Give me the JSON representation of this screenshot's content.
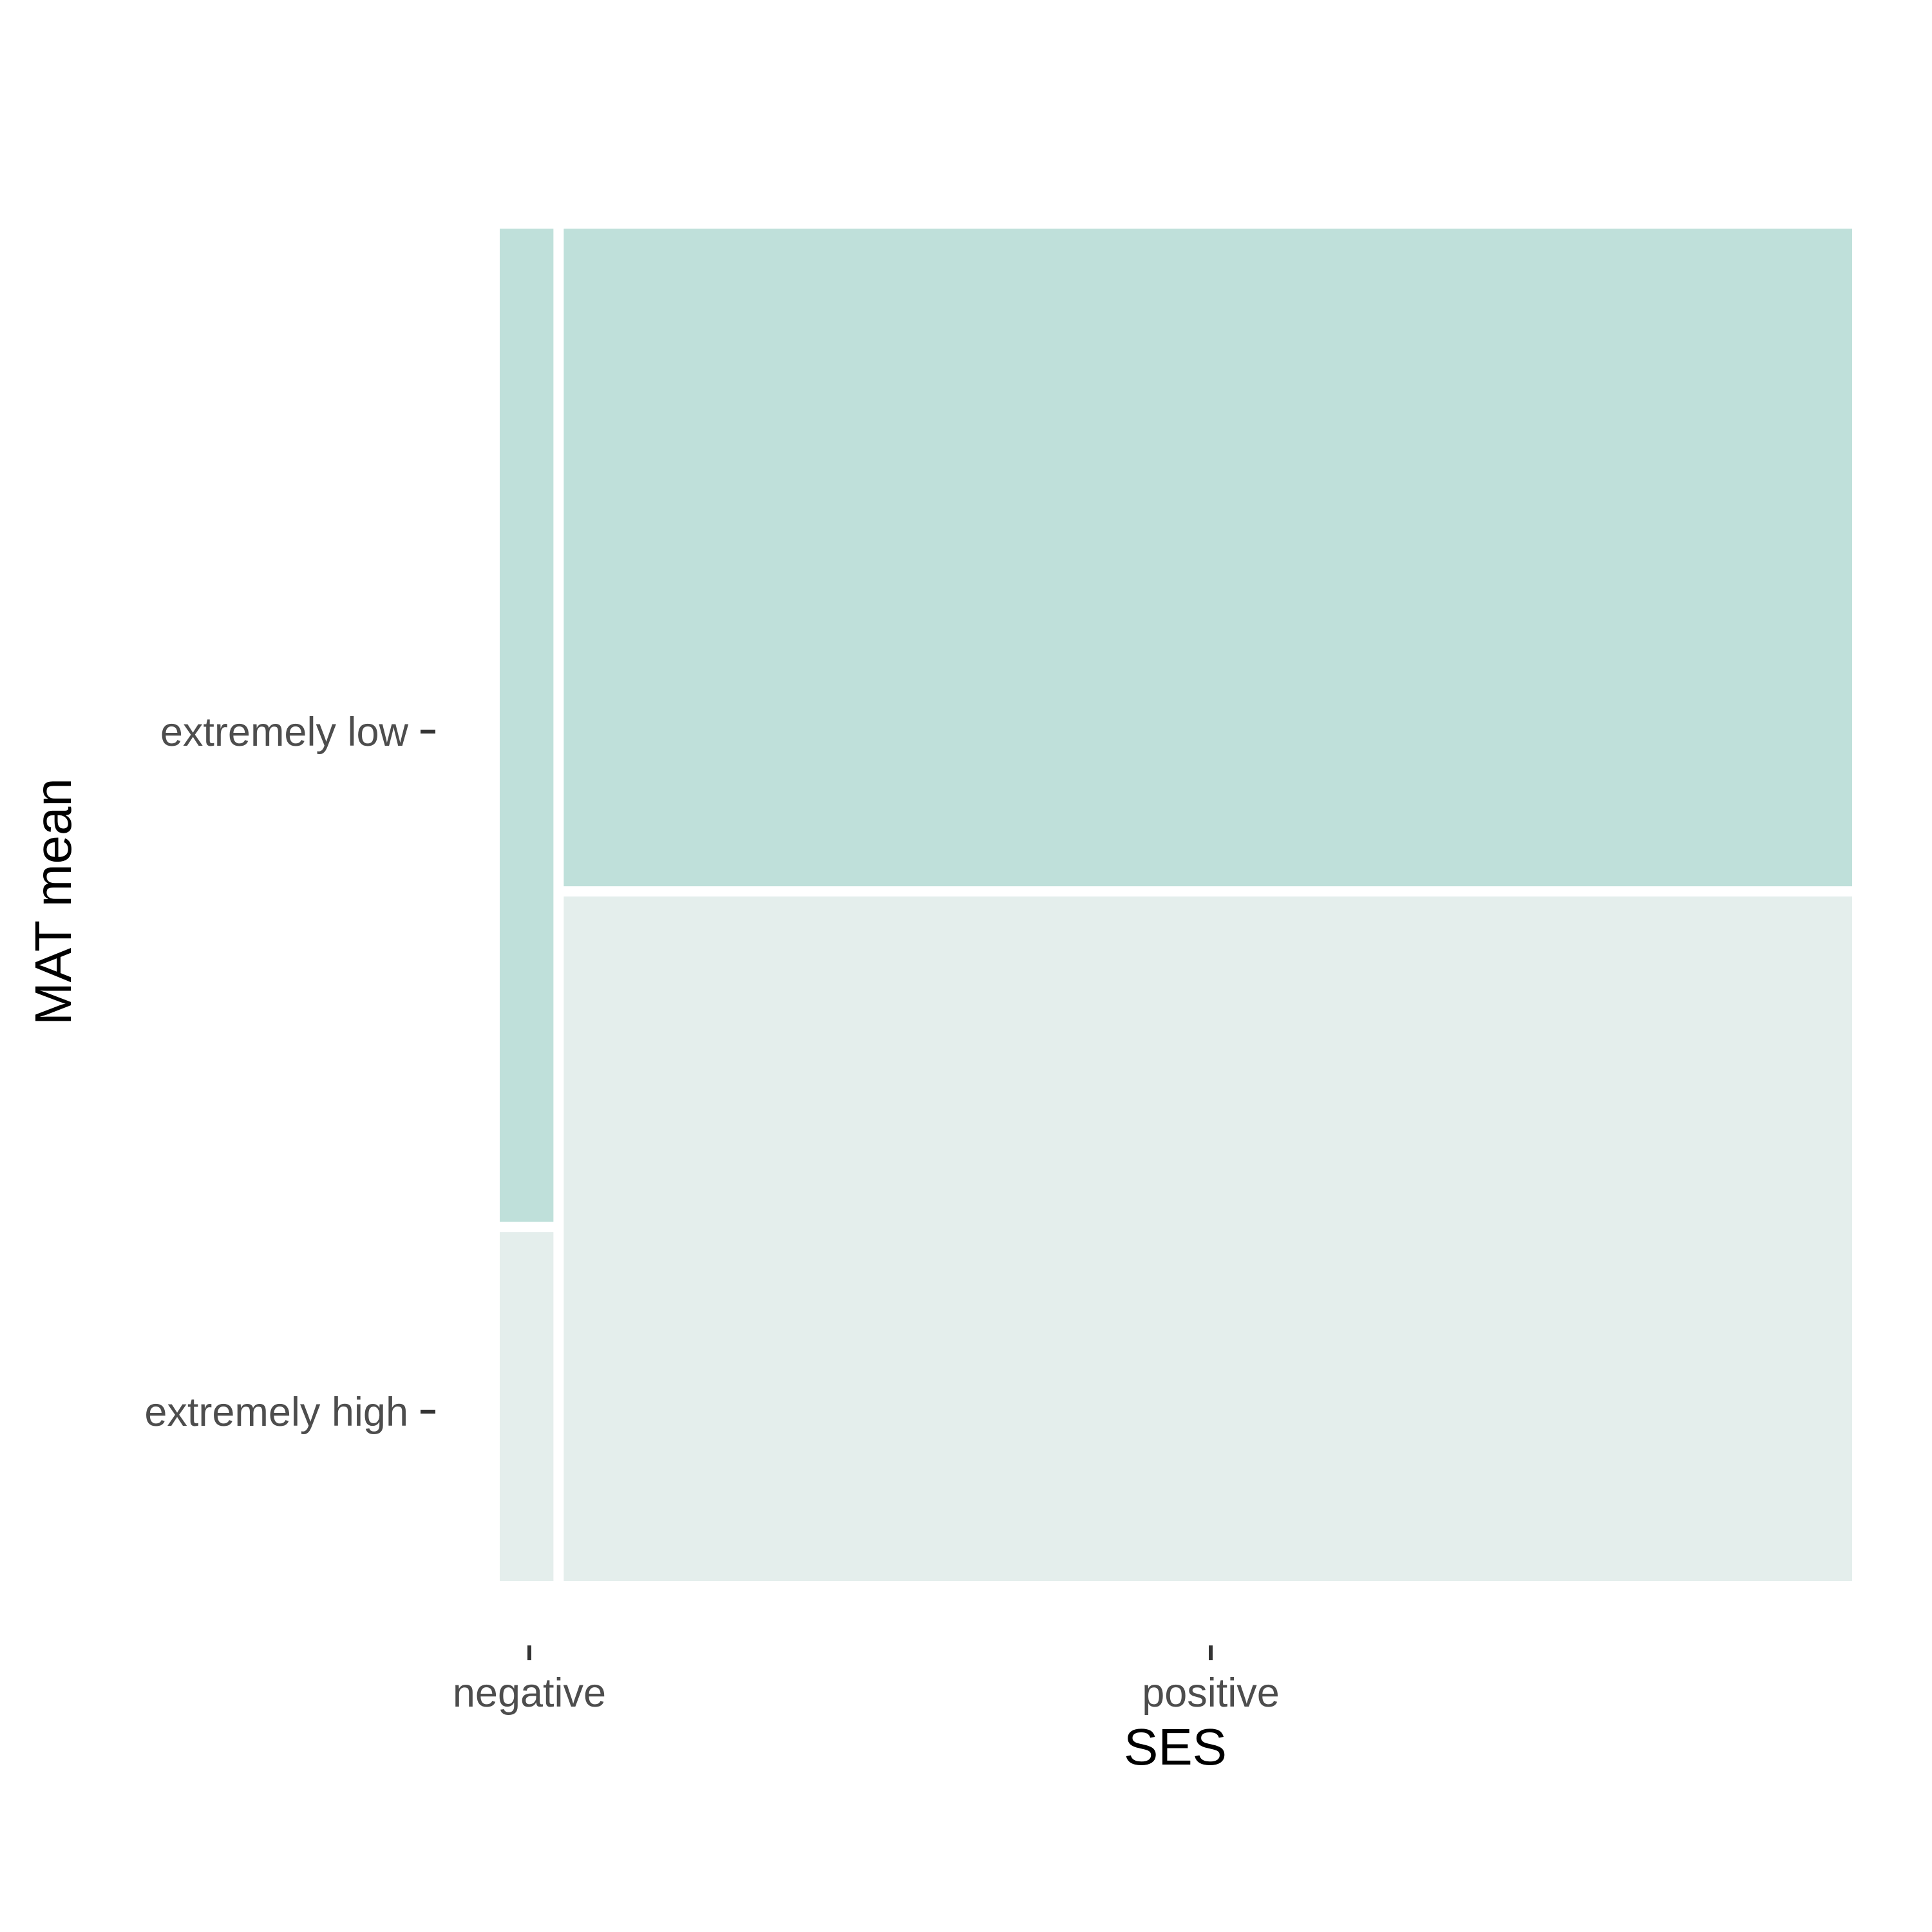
{
  "chart_data": {
    "type": "mosaic",
    "xlabel": "SES",
    "ylabel": "MAT mean",
    "x_categories": [
      "negative",
      "positive"
    ],
    "y_categories": [
      "extremely low",
      "extremely high"
    ],
    "x_proportions": [
      0.04,
      0.96
    ],
    "cells": [
      {
        "x": "negative",
        "y": "extremely low",
        "proportion": 0.74
      },
      {
        "x": "negative",
        "y": "extremely high",
        "proportion": 0.26
      },
      {
        "x": "positive",
        "y": "extremely low",
        "proportion": 0.49
      },
      {
        "x": "positive",
        "y": "extremely high",
        "proportion": 0.51
      }
    ],
    "colors": {
      "extremely low": "#bfe0da",
      "extremely high": "#e4eeec"
    },
    "grid": false,
    "legend": "none"
  }
}
